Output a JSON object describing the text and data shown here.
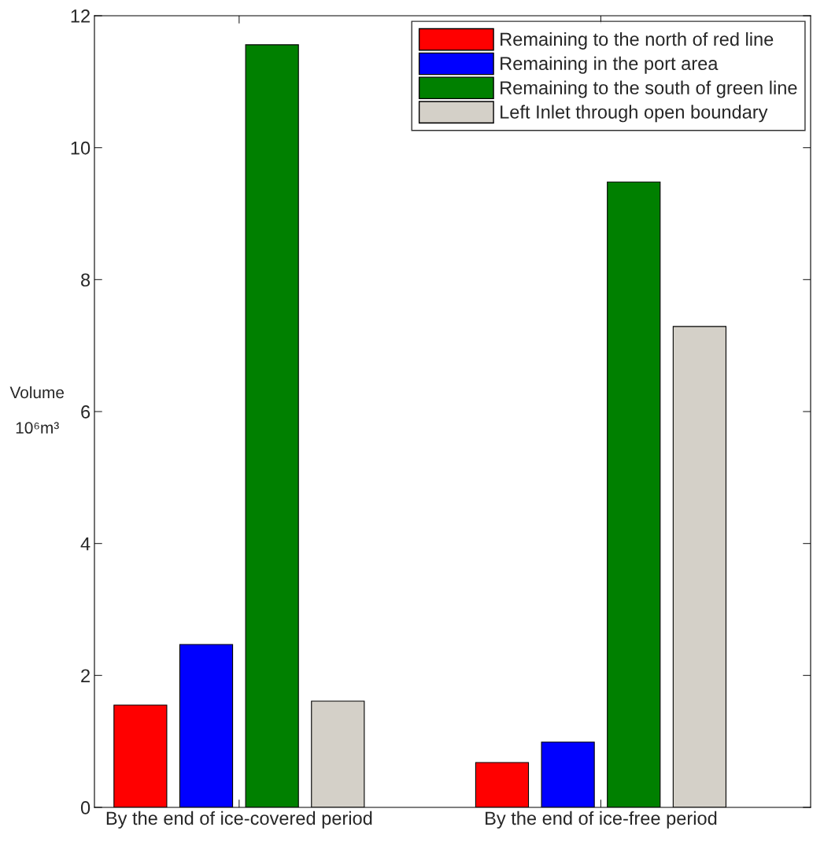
{
  "chart_data": {
    "type": "bar",
    "ylabel": "Volume\n\n10⁶m³",
    "categories": [
      "By the end of ice-covered period",
      "By the end of ice-free period"
    ],
    "series": [
      {
        "name": "Remaining to the north of red line",
        "color": "#ff0000",
        "values": [
          1.55,
          0.68
        ]
      },
      {
        "name": "Remaining in the port area",
        "color": "#0000ff",
        "values": [
          2.47,
          0.99
        ]
      },
      {
        "name": "Remaining to the south of green line",
        "color": "#008000",
        "values": [
          11.56,
          9.48
        ]
      },
      {
        "name": "Left Inlet through open boundary",
        "color": "#d4d0c8",
        "values": [
          1.61,
          7.29
        ]
      }
    ],
    "ylim": [
      0,
      12
    ],
    "yticks": [
      0,
      2,
      4,
      6,
      8,
      10,
      12
    ],
    "grid": false,
    "legend": "top right"
  }
}
